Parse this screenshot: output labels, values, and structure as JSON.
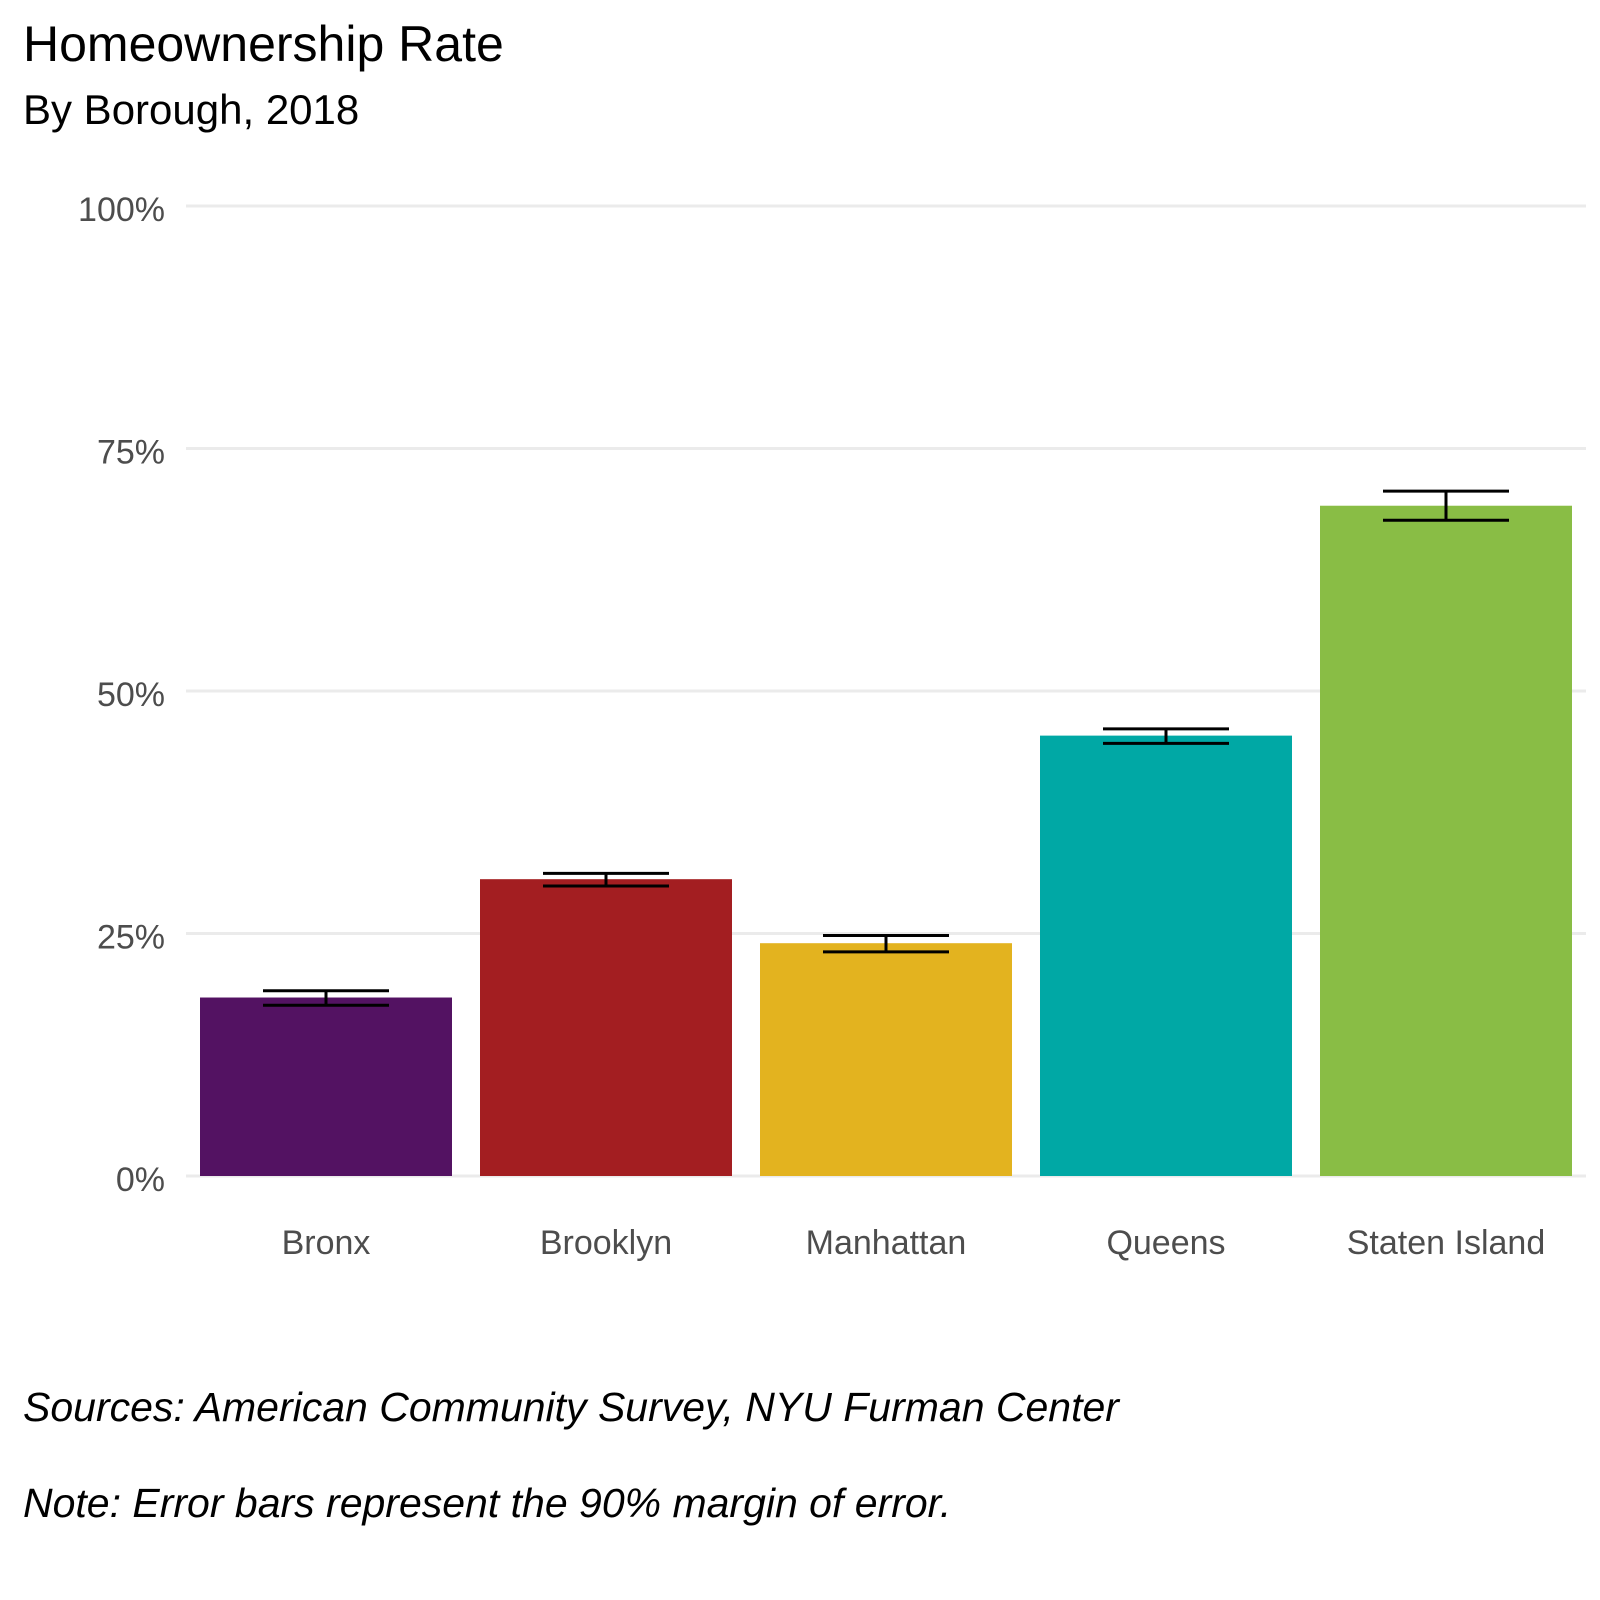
{
  "chart_data": {
    "type": "bar",
    "title": "Homeownership Rate",
    "subtitle": "By Borough, 2018",
    "xlabel": "",
    "ylabel": "",
    "ylim": [
      0,
      100
    ],
    "grid": true,
    "yticks": [
      0,
      25,
      50,
      75,
      100
    ],
    "ytick_labels": [
      "0%",
      "25%",
      "50%",
      "75%",
      "100%"
    ],
    "categories": [
      "Bronx",
      "Brooklyn",
      "Manhattan",
      "Queens",
      "Staten Island"
    ],
    "values": [
      18.4,
      30.6,
      24.0,
      45.4,
      69.1
    ],
    "error_low": [
      17.6,
      29.9,
      23.1,
      44.6,
      67.6
    ],
    "error_high": [
      19.1,
      31.2,
      24.8,
      46.1,
      70.6
    ],
    "colors": [
      "#531262",
      "#a31e21",
      "#e3b31f",
      "#00a8a5",
      "#89bd45"
    ],
    "caption_source": "Sources: American Community Survey, NYU Furman Center",
    "caption_note": "Note: Error bars represent the 90% margin of error."
  }
}
